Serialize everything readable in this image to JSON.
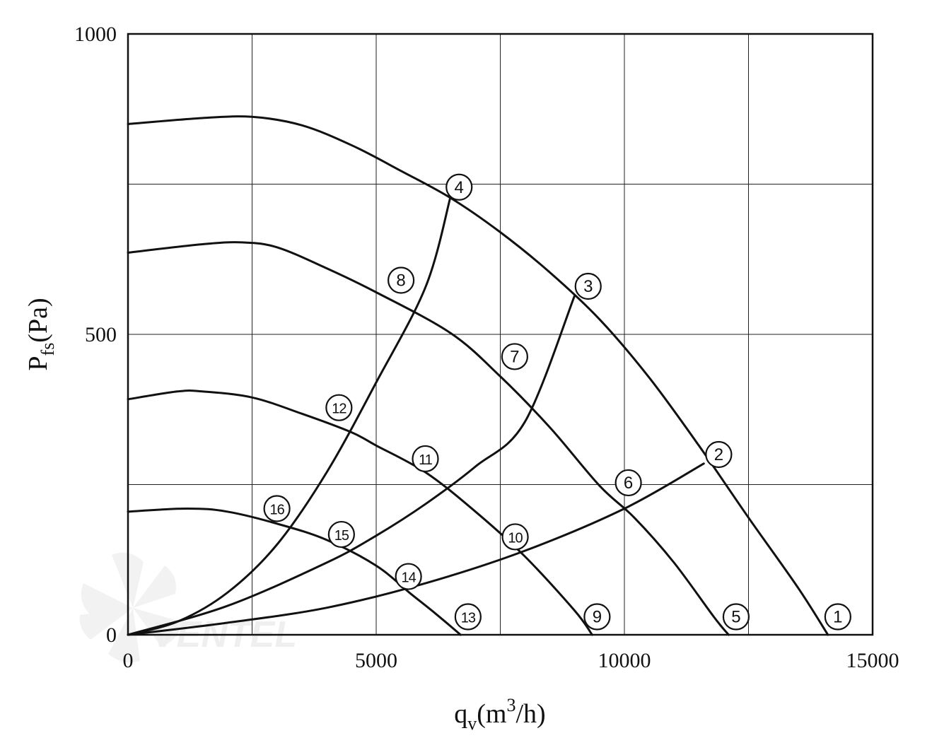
{
  "chart_data": {
    "type": "line",
    "x_axis": {
      "label": "q",
      "label_sub": "v",
      "label_rest": "(m",
      "label_sup": "3",
      "label_end": "/h)",
      "min": 0,
      "max": 15000,
      "ticks": [
        0,
        5000,
        10000,
        15000
      ],
      "tick_labels": [
        "0",
        "5000",
        "10000",
        "15000"
      ]
    },
    "y_axis": {
      "label": "P",
      "label_sub": "fs",
      "label_rest": "(Pa)",
      "min": 0,
      "max": 1000,
      "ticks": [
        0,
        500,
        1000
      ],
      "tick_labels": [
        "0",
        "500",
        "1000"
      ]
    },
    "grid": true,
    "grid_x": [
      2500,
      5000,
      7500,
      10000,
      12500
    ],
    "grid_y": [
      250,
      500,
      750
    ],
    "series": [
      {
        "kind": "fan",
        "points": [
          [
            0,
            850
          ],
          [
            1500,
            860
          ],
          [
            2500,
            862
          ],
          [
            3500,
            848
          ],
          [
            4500,
            815
          ],
          [
            5500,
            772
          ],
          [
            6500,
            727
          ],
          [
            7500,
            670
          ],
          [
            8500,
            603
          ],
          [
            9500,
            525
          ],
          [
            10500,
            428
          ],
          [
            11500,
            315
          ],
          [
            12500,
            195
          ],
          [
            13500,
            78
          ],
          [
            14100,
            0
          ]
        ]
      },
      {
        "kind": "fan",
        "points": [
          [
            0,
            636
          ],
          [
            1500,
            650
          ],
          [
            2300,
            653
          ],
          [
            3000,
            645
          ],
          [
            4000,
            610
          ],
          [
            5000,
            570
          ],
          [
            6500,
            502
          ],
          [
            7500,
            430
          ],
          [
            8500,
            345
          ],
          [
            9500,
            248
          ],
          [
            10200,
            195
          ],
          [
            11000,
            120
          ],
          [
            11800,
            30
          ],
          [
            12100,
            0
          ]
        ]
      },
      {
        "kind": "fan",
        "points": [
          [
            0,
            392
          ],
          [
            1000,
            405
          ],
          [
            1500,
            405
          ],
          [
            2500,
            395
          ],
          [
            3500,
            368
          ],
          [
            4500,
            337
          ],
          [
            5000,
            315
          ],
          [
            6000,
            270
          ],
          [
            7000,
            205
          ],
          [
            8000,
            130
          ],
          [
            9000,
            40
          ],
          [
            9350,
            0
          ]
        ]
      },
      {
        "kind": "fan",
        "points": [
          [
            0,
            205
          ],
          [
            1200,
            210
          ],
          [
            2000,
            205
          ],
          [
            3000,
            185
          ],
          [
            4000,
            158
          ],
          [
            5000,
            115
          ],
          [
            5700,
            68
          ],
          [
            6200,
            35
          ],
          [
            6700,
            0
          ]
        ]
      },
      {
        "kind": "system",
        "points": [
          [
            0,
            0
          ],
          [
            2000,
            20
          ],
          [
            4000,
            45
          ],
          [
            6000,
            86
          ],
          [
            8000,
            140
          ],
          [
            10000,
            210
          ],
          [
            11600,
            285
          ]
        ]
      },
      {
        "kind": "system",
        "points": [
          [
            0,
            0
          ],
          [
            2000,
            48
          ],
          [
            4000,
            120
          ],
          [
            5000,
            165
          ],
          [
            6000,
            218
          ],
          [
            7000,
            280
          ],
          [
            8000,
            355
          ],
          [
            9000,
            565
          ]
        ]
      },
      {
        "kind": "system",
        "points": [
          [
            0,
            0
          ],
          [
            1000,
            22
          ],
          [
            2000,
            70
          ],
          [
            3000,
            150
          ],
          [
            4000,
            270
          ],
          [
            5000,
            420
          ],
          [
            6000,
            580
          ],
          [
            6500,
            730
          ]
        ]
      }
    ],
    "markers": [
      {
        "label": "1",
        "x": 14300,
        "y": 30
      },
      {
        "label": "2",
        "x": 11900,
        "y": 300
      },
      {
        "label": "3",
        "x": 9270,
        "y": 580
      },
      {
        "label": "4",
        "x": 6670,
        "y": 745
      },
      {
        "label": "5",
        "x": 12250,
        "y": 30
      },
      {
        "label": "6",
        "x": 10080,
        "y": 253
      },
      {
        "label": "7",
        "x": 7790,
        "y": 463
      },
      {
        "label": "8",
        "x": 5500,
        "y": 590
      },
      {
        "label": "9",
        "x": 9450,
        "y": 30
      },
      {
        "label": "10",
        "x": 7800,
        "y": 163
      },
      {
        "label": "11",
        "x": 5990,
        "y": 293
      },
      {
        "label": "12",
        "x": 4250,
        "y": 378
      },
      {
        "label": "13",
        "x": 6850,
        "y": 30
      },
      {
        "label": "14",
        "x": 5650,
        "y": 97
      },
      {
        "label": "15",
        "x": 4300,
        "y": 167
      },
      {
        "label": "16",
        "x": 3000,
        "y": 210
      }
    ]
  },
  "watermark": {
    "text": "VENTEL"
  }
}
